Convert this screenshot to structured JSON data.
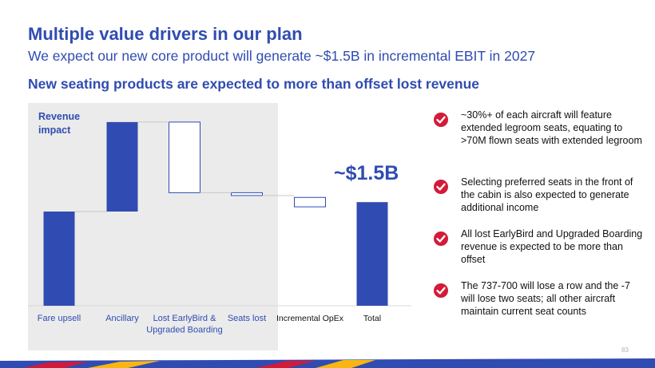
{
  "slide": {
    "title": "Multiple value drivers in our plan",
    "subtitle": "We expect our new core product will generate ~$1.5B in incremental EBIT in 2027",
    "section_heading": "New seating products are expected to more than offset lost revenue",
    "callout": "~$1.5B",
    "page_number": "83"
  },
  "bullets": [
    {
      "icon": "check-icon",
      "text": "~30%+ of each aircraft will feature extended legroom seats, equating to >70M flown seats with extended legroom"
    },
    {
      "icon": "check-icon",
      "text": "Selecting preferred seats in the front of the cabin is also expected to generate additional income"
    },
    {
      "icon": "check-icon",
      "text": "All lost EarlyBird and Upgraded Boarding revenue is expected to be more than offset"
    },
    {
      "icon": "check-icon",
      "text": "The 737-700 will lose a row and the -7 will lose two seats; all other aircraft maintain current seat counts"
    }
  ],
  "colors": {
    "brand_blue": "#304CB2",
    "check_red": "#d31a38",
    "panel_gray": "#ebebeb",
    "footer": [
      "#304CB2",
      "#d31a38",
      "#f9b612"
    ]
  },
  "chart_data": {
    "type": "waterfall",
    "ylabel": "Revenue impact",
    "axis_ticks": "none",
    "grid": false,
    "steps": [
      {
        "label": "Fare upsell",
        "start": 0,
        "end": 1.0,
        "style": "filled"
      },
      {
        "label": "Ancillary",
        "start": 1.0,
        "end": 1.95,
        "style": "filled"
      },
      {
        "label": "Lost EarlyBird & Upgraded Boarding",
        "start": 1.95,
        "end": 1.2,
        "style": "outline"
      },
      {
        "label": "Seats lost",
        "start": 1.2,
        "end": 1.17,
        "style": "outline"
      },
      {
        "label": "Incremental OpEx",
        "start": 1.15,
        "end": 1.05,
        "style": "outline"
      },
      {
        "label": "Total",
        "start": 0,
        "end": 1.1,
        "style": "filled"
      }
    ],
    "label_colors": [
      "#304CB2",
      "#304CB2",
      "#304CB2",
      "#304CB2",
      "#111111",
      "#111111"
    ]
  }
}
